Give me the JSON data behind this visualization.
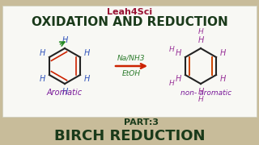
{
  "bg_color": "#c8bc9a",
  "panel_color": "#f8f8f4",
  "title_leah": "Leah4Sci",
  "title_leah_color": "#991133",
  "title_main": "OXIDATION AND REDUCTION",
  "title_main_color": "#1a3a1a",
  "reagent_text": "Na/NH3",
  "reagent2_text": "EtOH",
  "reagent_color": "#2a7a2a",
  "label_aromatic": "Aromatic",
  "label_aromatic_color": "#7a1a9a",
  "label_non_aromatic": "non- aromatic",
  "label_non_aromatic_color": "#7a1a9a",
  "part_text": "PART:3",
  "part_color": "#1a3a1a",
  "birch_text": "BIRCH REDUCTION",
  "birch_color": "#1a3a1a",
  "arrow_color": "#cc2200",
  "benzene_double_color": "#cc2200",
  "benzene_h_color": "#3355bb",
  "product_double_color": "#cc4400",
  "product_h_color": "#993399",
  "bond_color": "#222222",
  "green_color": "#228822"
}
